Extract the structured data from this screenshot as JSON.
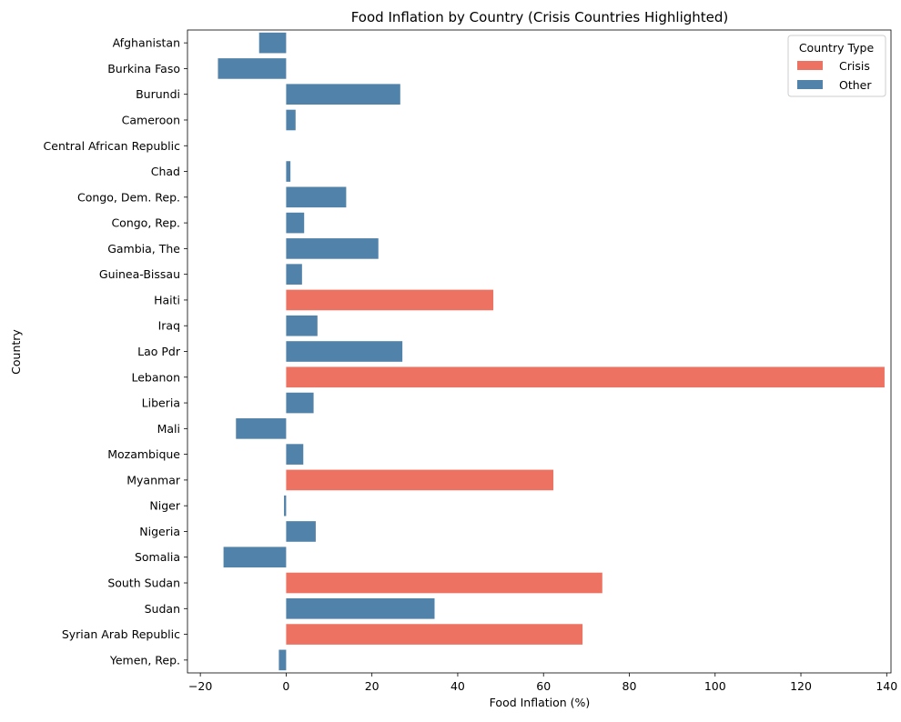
{
  "chart_data": {
    "type": "bar",
    "orientation": "horizontal",
    "title": "Food Inflation by Country (Crisis Countries Highlighted)",
    "xlabel": "Food Inflation (%)",
    "ylabel": "Country",
    "xlim": [
      -23,
      141
    ],
    "xticks": [
      -20,
      0,
      20,
      40,
      60,
      80,
      100,
      120,
      140
    ],
    "grid": false,
    "legend": {
      "title": "Country Type",
      "placement": "top-right",
      "entries": [
        {
          "label": "Crisis",
          "color": "#ed7261"
        },
        {
          "label": "Other",
          "color": "#5182aa"
        }
      ]
    },
    "categories": [
      "Afghanistan",
      "Burkina Faso",
      "Burundi",
      "Cameroon",
      "Central African Republic",
      "Chad",
      "Congo, Dem. Rep.",
      "Congo, Rep.",
      "Gambia, The",
      "Guinea-Bissau",
      "Haiti",
      "Iraq",
      "Lao Pdr",
      "Lebanon",
      "Liberia",
      "Mali",
      "Mozambique",
      "Myanmar",
      "Niger",
      "Nigeria",
      "Somalia",
      "South Sudan",
      "Sudan",
      "Syrian Arab Republic",
      "Yemen, Rep."
    ],
    "values": [
      -6.3,
      -15.9,
      26.6,
      2.2,
      0,
      1.0,
      14.0,
      4.2,
      21.5,
      3.7,
      48.3,
      7.3,
      27.1,
      139.5,
      6.4,
      -11.7,
      4.0,
      62.3,
      -0.5,
      6.9,
      -14.6,
      73.7,
      34.6,
      69.1,
      -1.7
    ],
    "types": [
      "Other",
      "Other",
      "Other",
      "Other",
      "Other",
      "Other",
      "Other",
      "Other",
      "Other",
      "Other",
      "Crisis",
      "Other",
      "Other",
      "Crisis",
      "Other",
      "Other",
      "Other",
      "Crisis",
      "Other",
      "Other",
      "Other",
      "Crisis",
      "Other",
      "Crisis",
      "Other"
    ]
  }
}
